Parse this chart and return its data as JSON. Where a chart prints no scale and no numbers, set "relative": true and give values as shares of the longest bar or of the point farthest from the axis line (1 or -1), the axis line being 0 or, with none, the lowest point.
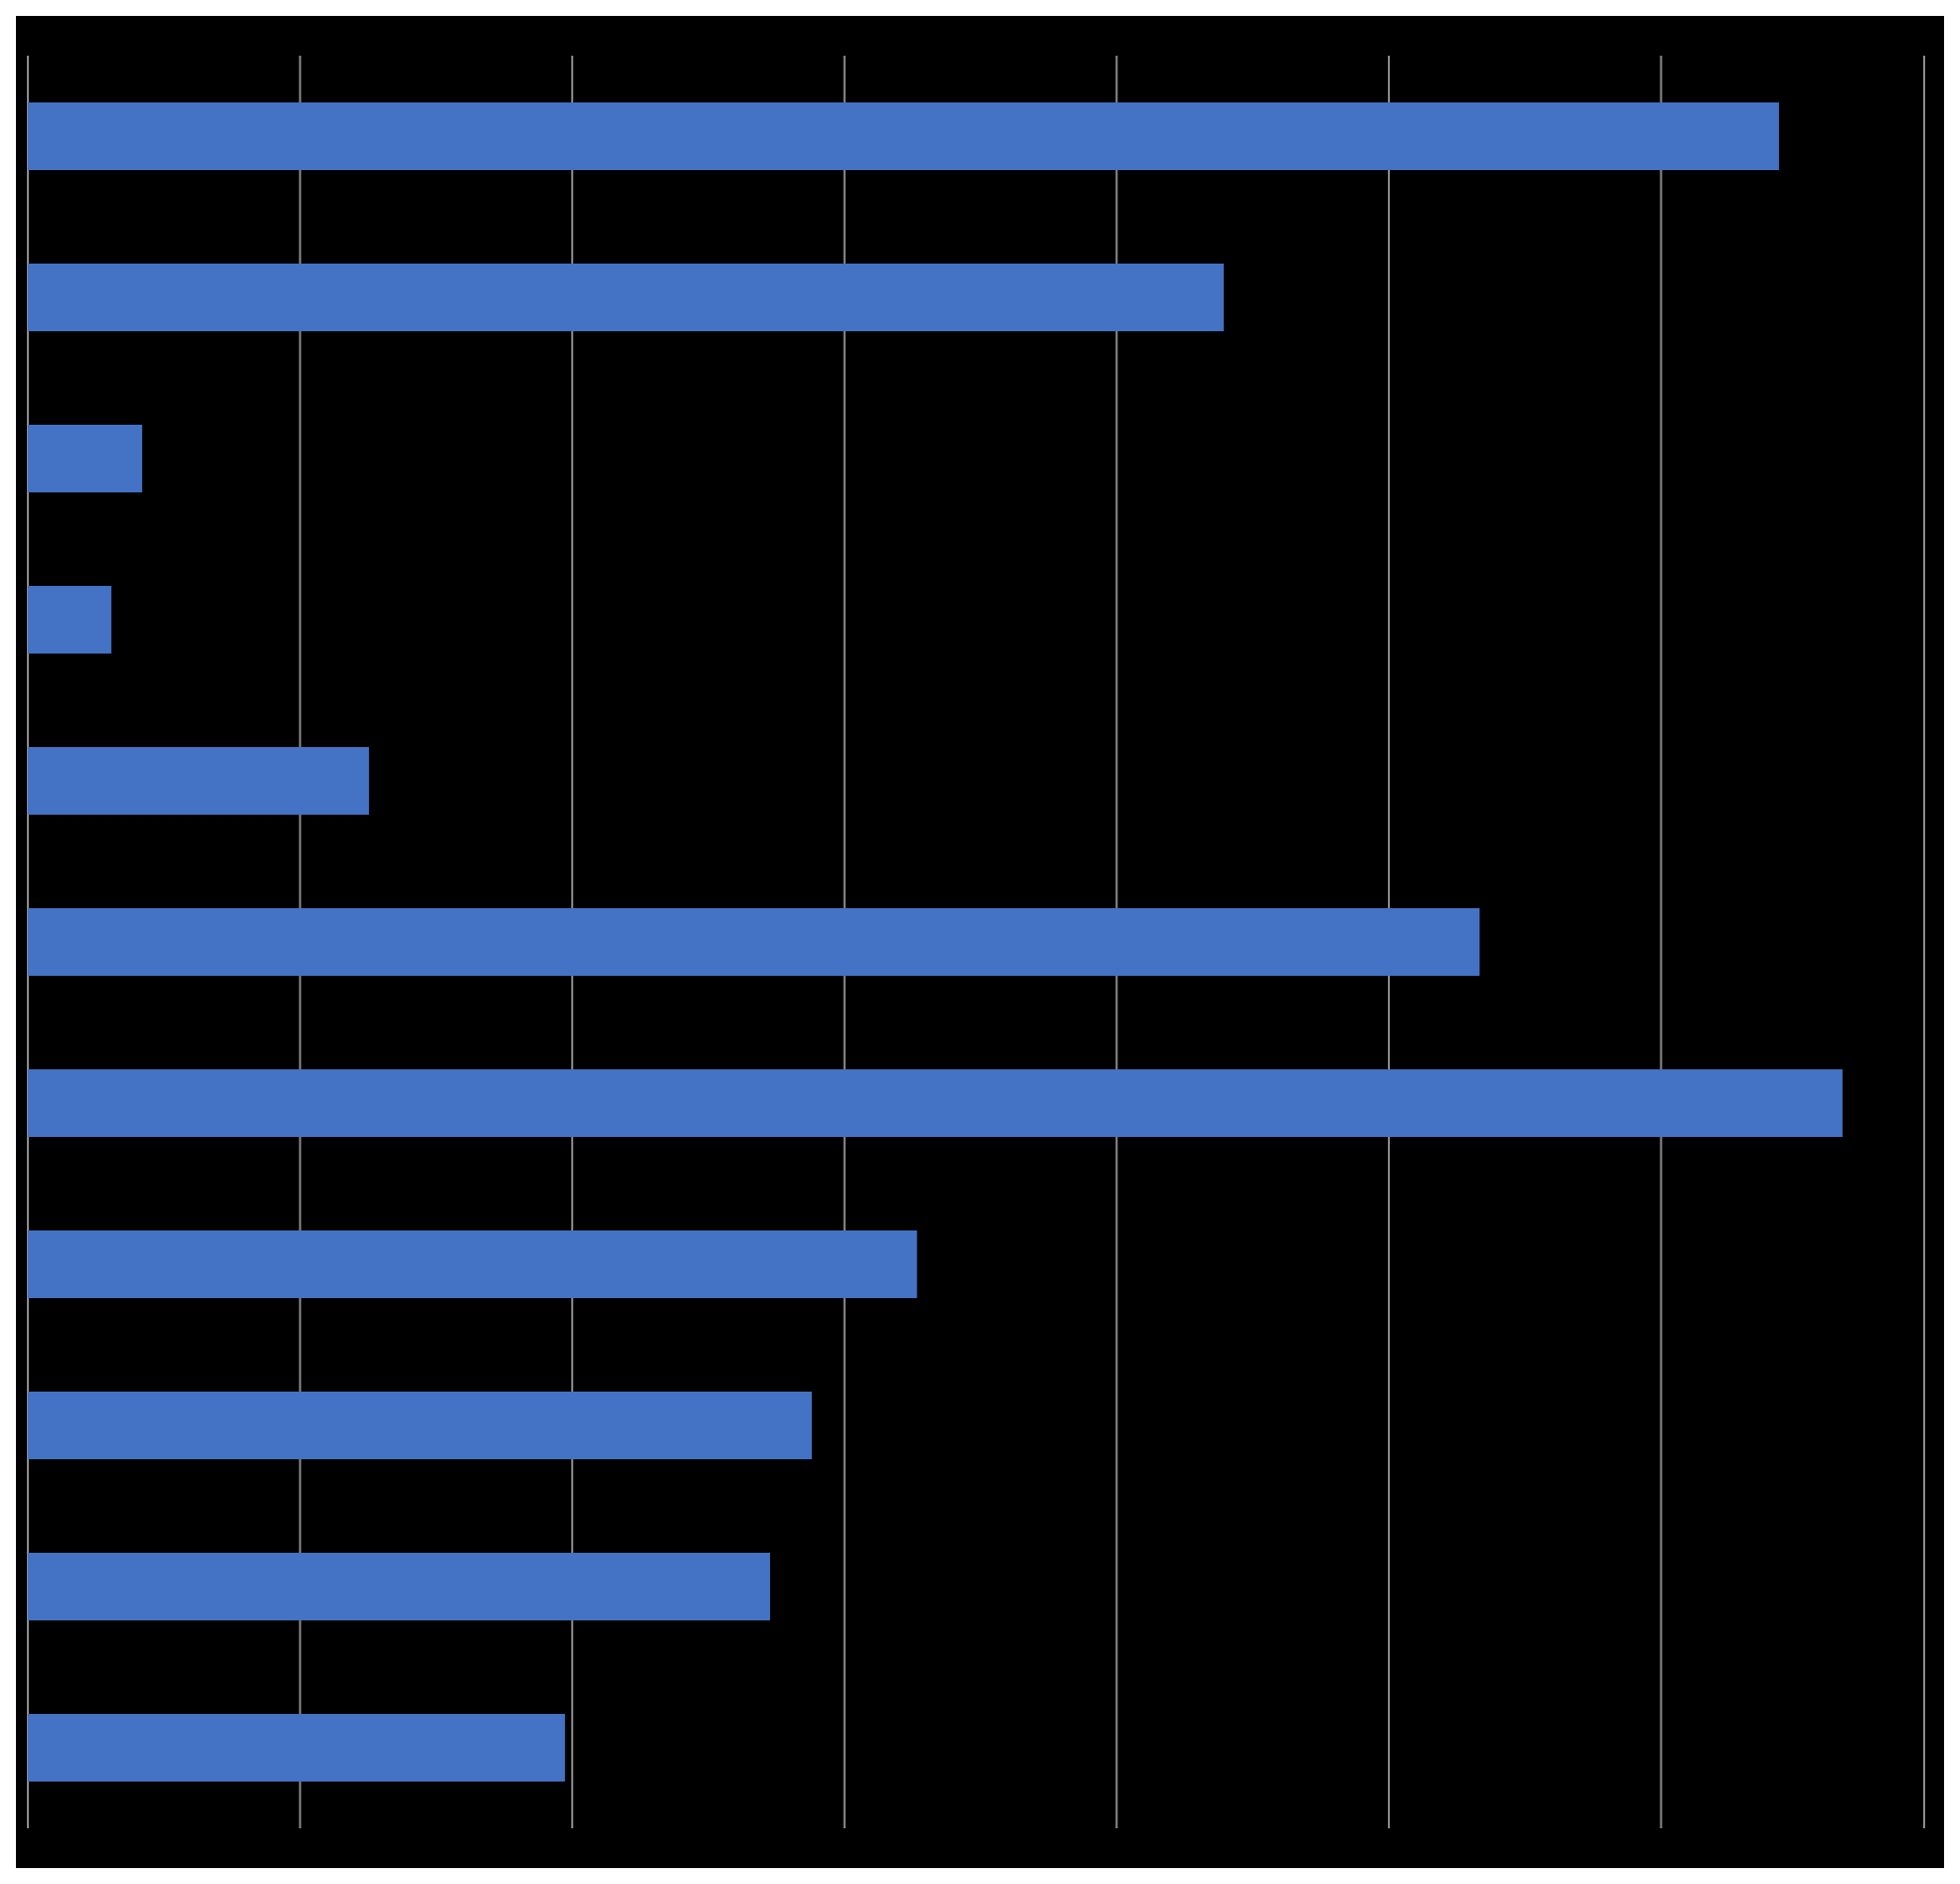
{
  "chart_data": {
    "type": "bar",
    "orientation": "horizontal",
    "relative": true,
    "categories": [
      null,
      null,
      null,
      null,
      null,
      null,
      null,
      null,
      null,
      null,
      null
    ],
    "values": [
      0.965,
      0.659,
      0.063,
      0.046,
      0.188,
      0.8,
      1,
      0.49,
      0.432,
      0.409,
      0.296
    ],
    "color": "#4472c4",
    "grid": "x"
  }
}
